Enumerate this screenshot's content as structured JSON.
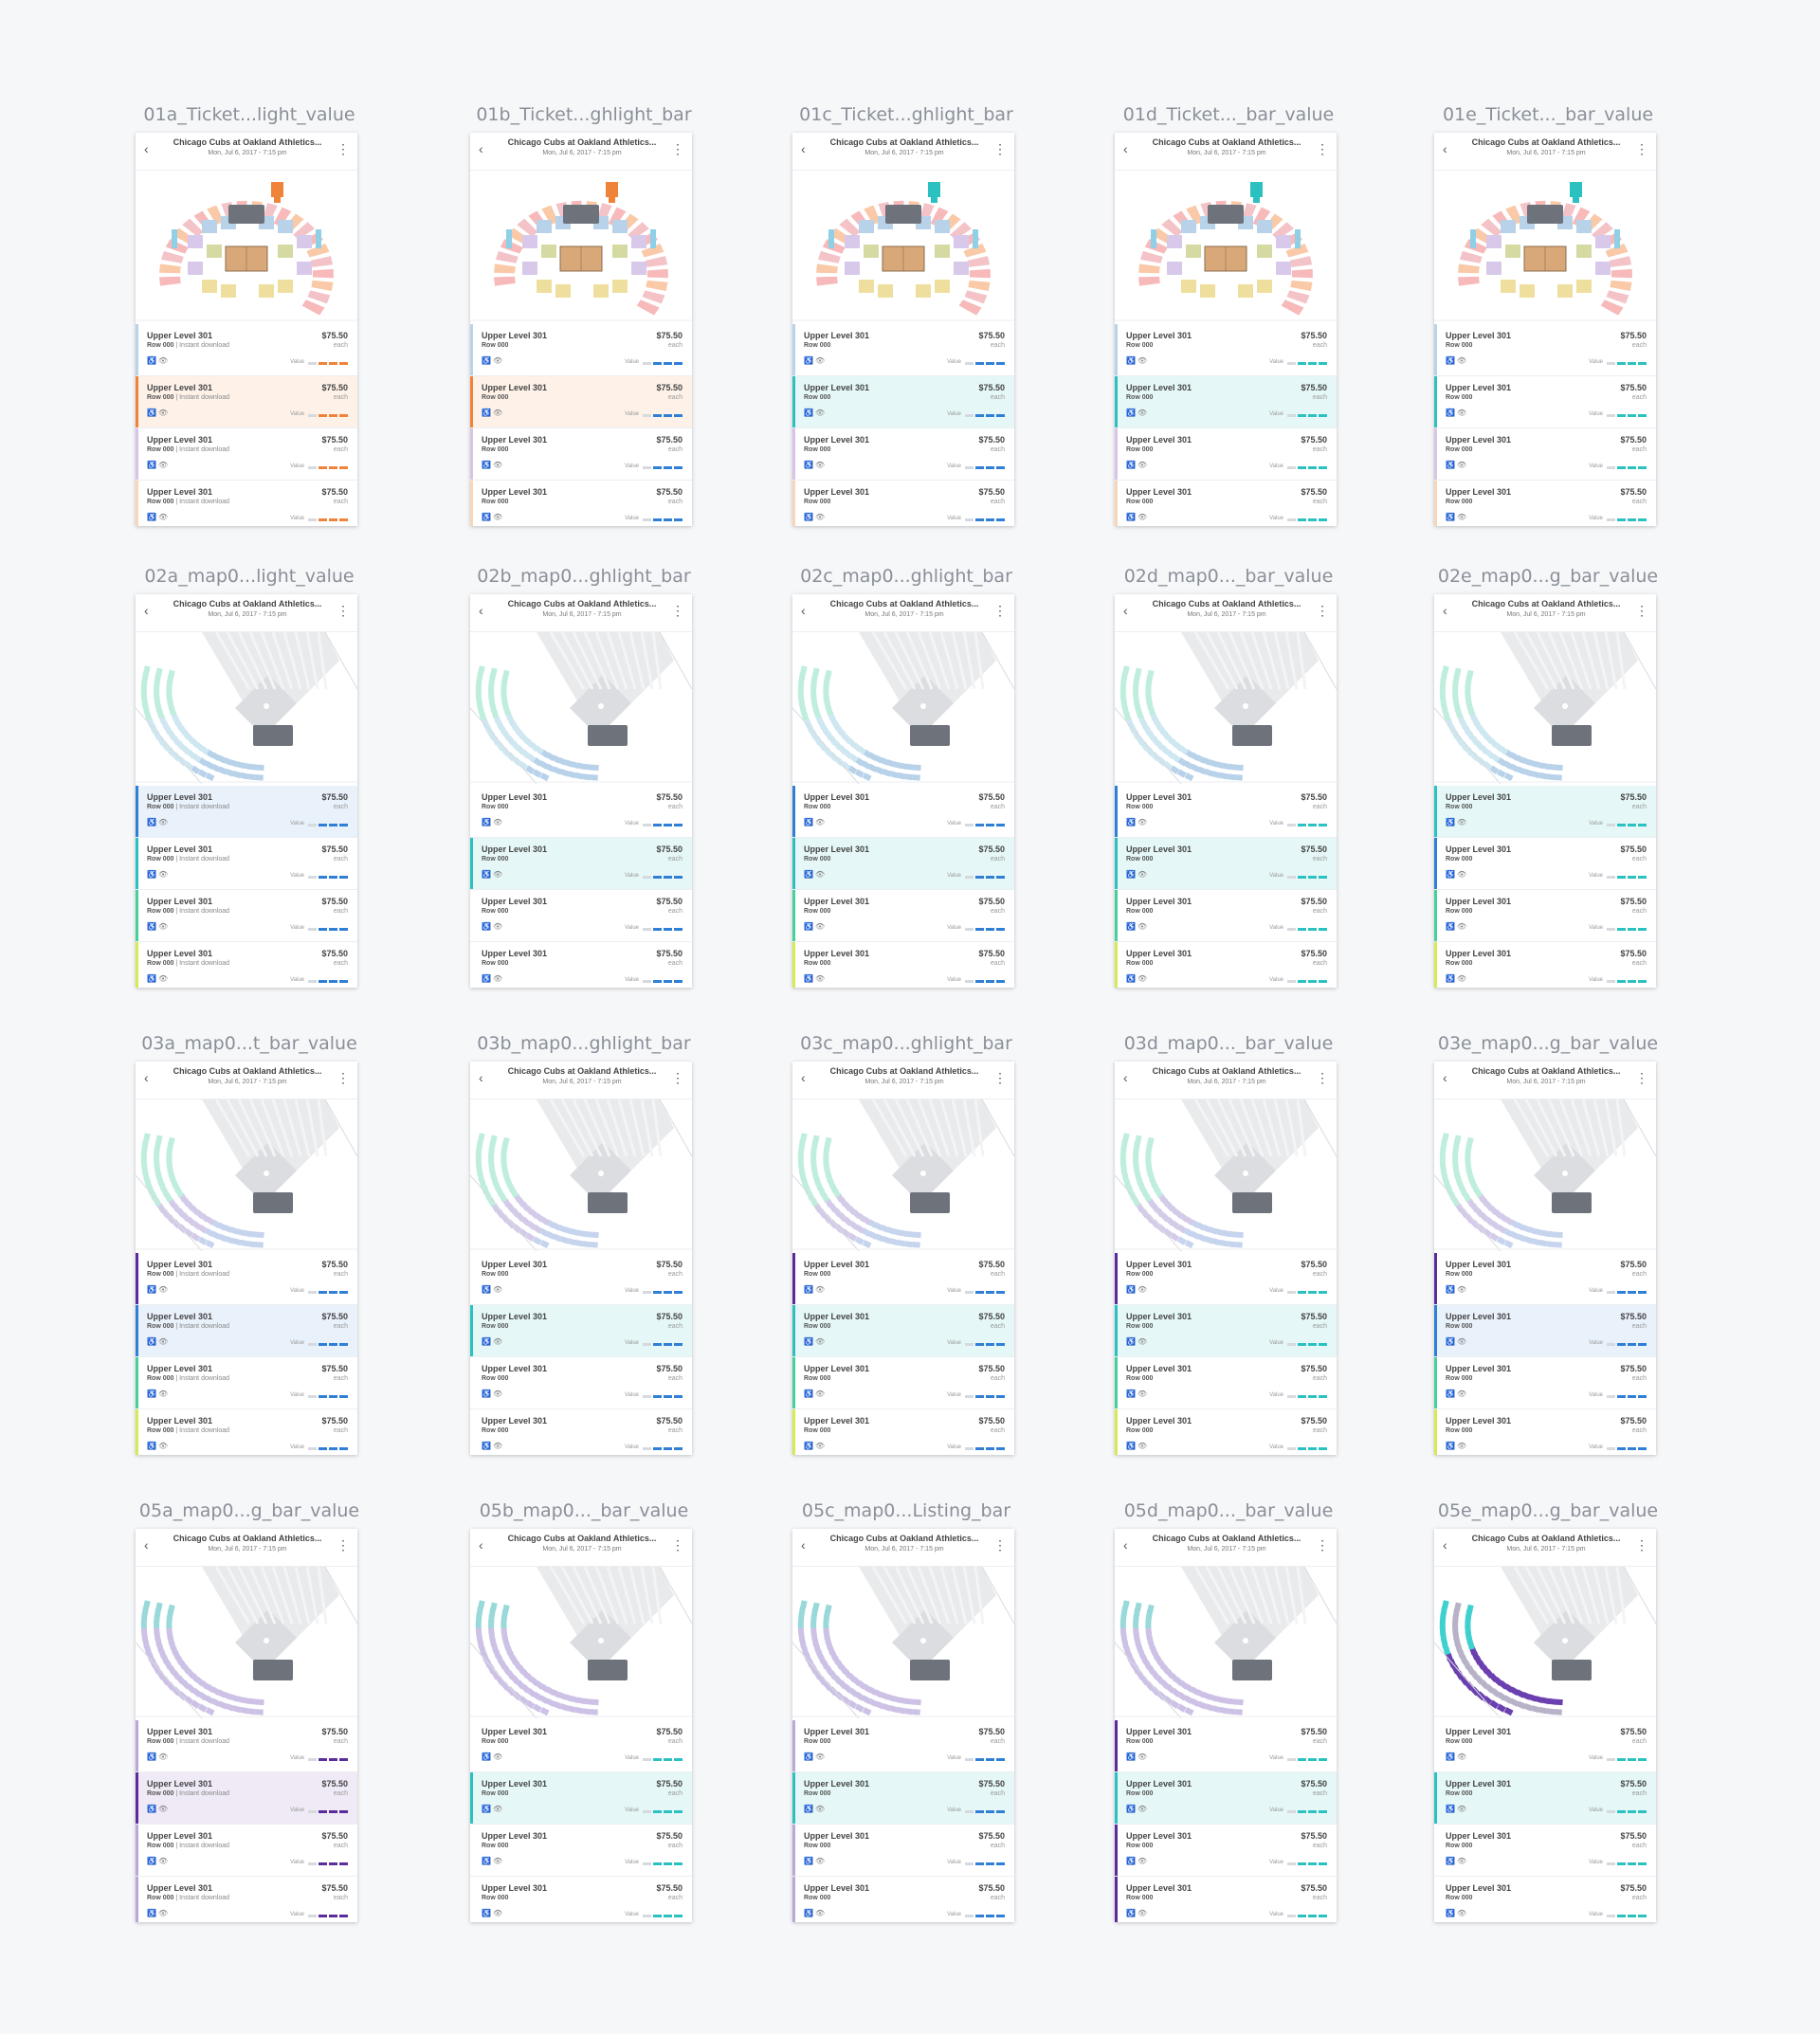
{
  "common": {
    "back_icon": "chevron-left-icon",
    "more_icon": "more-vert-icon",
    "event_title": "Chicago Cubs at Oakland Athletics...",
    "event_date": "Mon, Jul 6, 2017 - 7:15 pm",
    "section": "Upper Level 301",
    "row": "Row 000",
    "instant": " | Instant download",
    "price": "$75.50",
    "each": "each",
    "value_label": "Value",
    "wheelchair_icon": "♿",
    "view_icon": "👁",
    "colors": {
      "orange": "#f0833a",
      "teal": "#2cc1c1",
      "blue": "#2f7fd6",
      "purple": "#5b2c9c",
      "lavender": "#b9a8d8",
      "green": "#45d199",
      "lime": "#d5ea54",
      "pink": "#f3c3c8",
      "peach": "#f9c9a8",
      "seat_block": "#6d727b"
    }
  },
  "frames": [
    {
      "label": "01a_Ticket...light_value",
      "map": "arena",
      "instant": true,
      "hl": "orange",
      "bars": [
        "#b9d3ea",
        "#f0833a",
        "#d9c4e6",
        "#f9d6b8"
      ],
      "sel": 1,
      "sel_bg": "#fdf1e8",
      "mode": "value"
    },
    {
      "label": "01b_Ticket...ghlight_bar",
      "map": "arena",
      "instant": false,
      "hl": "orange",
      "bars": [
        "#b9d3ea",
        "#f0833a",
        "#d9c4e6",
        "#f9d6b8"
      ],
      "sel": 1,
      "sel_bg": "#fdf1e8",
      "mode": "bar"
    },
    {
      "label": "01c_Ticket...ghlight_bar",
      "map": "arena",
      "instant": false,
      "hl": "teal",
      "bars": [
        "#b9d3ea",
        "#2cc1c1",
        "#d9c4e6",
        "#f9d6b8"
      ],
      "sel": 1,
      "sel_bg": "#e6f7f7",
      "mode": "bar"
    },
    {
      "label": "01d_Ticket..._bar_value",
      "map": "arena",
      "instant": false,
      "hl": "teal",
      "bars": [
        "#b9d3ea",
        "#2cc1c1",
        "#d9c4e6",
        "#f9d6b8"
      ],
      "sel": 1,
      "sel_bg": "#e6f7f7",
      "mode": "value"
    },
    {
      "label": "01e_Ticket..._bar_value",
      "map": "arena",
      "instant": false,
      "hl": "teal",
      "bars": [
        "#b9d3ea",
        "#2cc1c1",
        "#d9c4e6",
        "#f9d6b8"
      ],
      "sel": -1,
      "sel_bg": "",
      "mode": "value"
    },
    {
      "label": "02a_map0...light_value",
      "map": "ball",
      "palette": "cool",
      "instant": true,
      "hl": "blue",
      "bars": [
        "#2f7fd6",
        "#2cc1c1",
        "#45d199",
        "#d5ea54"
      ],
      "sel": 0,
      "sel_bg": "#e9f1fb",
      "mode": "value"
    },
    {
      "label": "02b_map0...ghlight_bar",
      "map": "ball",
      "palette": "cool",
      "instant": false,
      "hl": "teal",
      "bars": [
        "#ffffff",
        "#2cc1c1",
        "#ffffff",
        "#ffffff"
      ],
      "sel": 1,
      "sel_bg": "#e6f7f7",
      "mode": "bar"
    },
    {
      "label": "02c_map0...ghlight_bar",
      "map": "ball",
      "palette": "cool",
      "instant": false,
      "hl": "teal",
      "bars": [
        "#2f7fd6",
        "#2cc1c1",
        "#45d199",
        "#d5ea54"
      ],
      "sel": 1,
      "sel_bg": "#e6f7f7",
      "mode": "bar"
    },
    {
      "label": "02d_map0..._bar_value",
      "map": "ball",
      "palette": "cool",
      "instant": false,
      "hl": "teal",
      "bars": [
        "#2f7fd6",
        "#2cc1c1",
        "#45d199",
        "#d5ea54"
      ],
      "sel": 1,
      "sel_bg": "#e6f7f7",
      "mode": "value"
    },
    {
      "label": "02e_map0...g_bar_value",
      "map": "ball",
      "palette": "cool",
      "instant": false,
      "hl": "teal",
      "bars": [
        "#2cc1c1",
        "#2f7fd6",
        "#45d199",
        "#d5ea54"
      ],
      "sel": 0,
      "sel_bg": "#e6f7f7",
      "mode": "value"
    },
    {
      "label": "03a_map0...t_bar_value",
      "map": "ball",
      "palette": "mixed",
      "instant": true,
      "hl": "blue",
      "bars": [
        "#5b2c9c",
        "#2f7fd6",
        "#45d199",
        "#d5ea54"
      ],
      "sel": 1,
      "sel_bg": "#e9f1fb",
      "mode": "value"
    },
    {
      "label": "03b_map0...ghlight_bar",
      "map": "ball",
      "palette": "mixed",
      "instant": false,
      "hl": "teal",
      "bars": [
        "#ffffff",
        "#2cc1c1",
        "#ffffff",
        "#ffffff"
      ],
      "sel": 1,
      "sel_bg": "#e6f7f7",
      "mode": "bar"
    },
    {
      "label": "03c_map0...ghlight_bar",
      "map": "ball",
      "palette": "mixed",
      "instant": false,
      "hl": "teal",
      "bars": [
        "#5b2c9c",
        "#2cc1c1",
        "#45d199",
        "#d5ea54"
      ],
      "sel": 1,
      "sel_bg": "#e6f7f7",
      "mode": "bar"
    },
    {
      "label": "03d_map0..._bar_value",
      "map": "ball",
      "palette": "mixed",
      "instant": false,
      "hl": "teal",
      "bars": [
        "#5b2c9c",
        "#2cc1c1",
        "#45d199",
        "#d5ea54"
      ],
      "sel": 1,
      "sel_bg": "#e6f7f7",
      "mode": "value"
    },
    {
      "label": "03e_map0...g_bar_value",
      "map": "ball",
      "palette": "mixed",
      "instant": false,
      "hl": "blue",
      "bars": [
        "#5b2c9c",
        "#2f7fd6",
        "#45d199",
        "#d5ea54"
      ],
      "sel": 1,
      "sel_bg": "#e9f1fb",
      "mode": "value"
    },
    {
      "label": "05a_map0...g_bar_value",
      "map": "ball",
      "palette": "purple",
      "instant": true,
      "hl": "purple",
      "bars": [
        "#b9a8d8",
        "#5b2c9c",
        "#b9a8d8",
        "#b9a8d8"
      ],
      "sel": 1,
      "sel_bg": "#efeaf6",
      "mode": "value"
    },
    {
      "label": "05b_map0..._bar_value",
      "map": "ball",
      "palette": "purple",
      "instant": false,
      "hl": "teal",
      "bars": [
        "#ffffff",
        "#2cc1c1",
        "#ffffff",
        "#ffffff"
      ],
      "sel": 1,
      "sel_bg": "#e6f7f7",
      "mode": "value"
    },
    {
      "label": "05c_map0...Listing_bar",
      "map": "ball",
      "palette": "purple",
      "instant": false,
      "hl": "teal",
      "bars": [
        "#b9a8d8",
        "#2cc1c1",
        "#b9a8d8",
        "#b9a8d8"
      ],
      "sel": 1,
      "sel_bg": "#e6f7f7",
      "mode": "bar"
    },
    {
      "label": "05d_map0..._bar_value",
      "map": "ball",
      "palette": "purple",
      "instant": false,
      "hl": "teal",
      "bars": [
        "#5b2c9c",
        "#2cc1c1",
        "#5b2c9c",
        "#5b2c9c"
      ],
      "sel": 1,
      "sel_bg": "#e6f7f7",
      "mode": "value"
    },
    {
      "label": "05e_map0...g_bar_value",
      "map": "ball",
      "palette": "dark",
      "instant": false,
      "hl": "teal",
      "bars": [
        "#ffffff",
        "#2cc1c1",
        "#ffffff",
        "#ffffff"
      ],
      "sel": 1,
      "sel_bg": "#e6f7f7",
      "mode": "value"
    }
  ]
}
